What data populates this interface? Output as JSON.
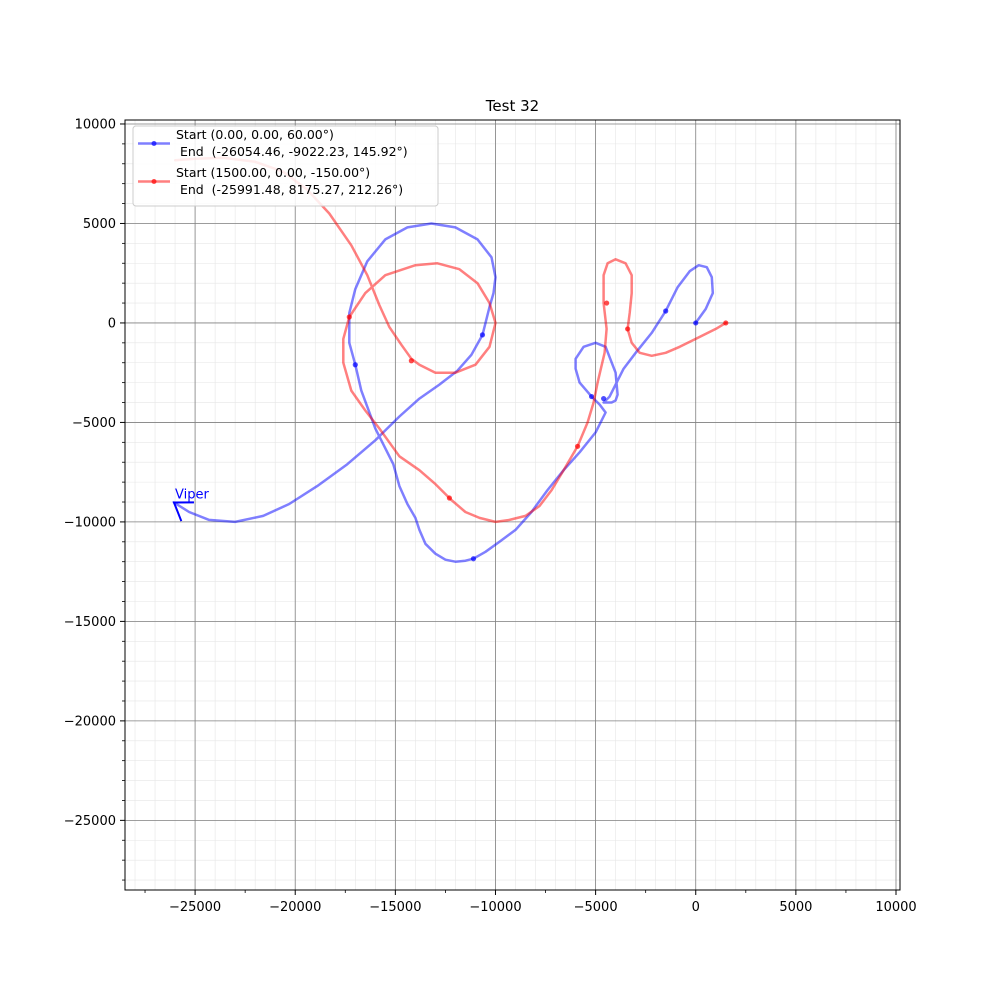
{
  "chart_data": {
    "type": "line",
    "title": "Test 32",
    "xlabel": "",
    "ylabel": "",
    "xlim": [
      -28500,
      10200
    ],
    "ylim": [
      -28500,
      10200
    ],
    "xticks": [
      -25000,
      -20000,
      -15000,
      -10000,
      -5000,
      0,
      5000,
      10000
    ],
    "yticks": [
      10000,
      5000,
      0,
      -5000,
      -10000,
      -15000,
      -20000,
      -25000
    ],
    "xtick_labels": [
      "−25000",
      "−20000",
      "−15000",
      "−10000",
      "−5000",
      "0",
      "5000",
      "10000"
    ],
    "ytick_labels": [
      "10000",
      "5000",
      "0",
      "−5000",
      "−10000",
      "−15000",
      "−20000",
      "−25000"
    ],
    "grid": true,
    "minor_grid": true,
    "minor_step": 1000,
    "legend_position": "top-left",
    "series": [
      {
        "name": "Start (0.00, 0.00, 60.00°)\n End  (-26054.46, -9022.23, 145.92°)",
        "legend_line1": "Start (0.00, 0.00, 60.00°)",
        "legend_line2": " End  (-26054.46, -9022.23, 145.92°)",
        "color": "#0000ff",
        "points": [
          [
            0,
            0
          ],
          [
            500,
            700
          ],
          [
            850,
            1500
          ],
          [
            800,
            2300
          ],
          [
            550,
            2800
          ],
          [
            150,
            2900
          ],
          [
            -300,
            2600
          ],
          [
            -900,
            1800
          ],
          [
            -1500,
            600
          ],
          [
            -2200,
            -500
          ],
          [
            -3000,
            -1500
          ],
          [
            -3600,
            -2300
          ],
          [
            -4000,
            -3100
          ],
          [
            -4300,
            -3700
          ],
          [
            -4600,
            -4000
          ],
          [
            -4200,
            -4000
          ],
          [
            -4000,
            -3900
          ],
          [
            -3900,
            -3600
          ],
          [
            -4000,
            -2500
          ],
          [
            -4500,
            -1200
          ],
          [
            -5000,
            -1000
          ],
          [
            -5600,
            -1200
          ],
          [
            -6000,
            -1800
          ],
          [
            -6000,
            -2300
          ],
          [
            -5800,
            -3000
          ],
          [
            -5200,
            -3700
          ],
          [
            -4800,
            -4100
          ],
          [
            -4500,
            -4500
          ],
          [
            -5000,
            -5500
          ],
          [
            -5800,
            -6500
          ],
          [
            -6600,
            -7400
          ],
          [
            -7400,
            -8400
          ],
          [
            -8200,
            -9500
          ],
          [
            -9000,
            -10400
          ],
          [
            -9800,
            -11000
          ],
          [
            -10500,
            -11500
          ],
          [
            -11100,
            -11850
          ],
          [
            -11500,
            -11950
          ],
          [
            -12000,
            -12000
          ],
          [
            -12500,
            -11900
          ],
          [
            -13000,
            -11600
          ],
          [
            -13500,
            -11100
          ],
          [
            -13800,
            -10400
          ],
          [
            -14000,
            -9800
          ],
          [
            -14400,
            -9100
          ],
          [
            -14800,
            -8200
          ],
          [
            -15100,
            -7100
          ],
          [
            -15500,
            -6300
          ],
          [
            -16000,
            -5300
          ],
          [
            -16700,
            -3400
          ],
          [
            -17000,
            -2100
          ],
          [
            -17300,
            -1000
          ],
          [
            -17300,
            500
          ],
          [
            -17000,
            1700
          ],
          [
            -16400,
            3100
          ],
          [
            -15500,
            4200
          ],
          [
            -14400,
            4800
          ],
          [
            -13200,
            5000
          ],
          [
            -12000,
            4800
          ],
          [
            -10900,
            4200
          ],
          [
            -10200,
            3300
          ],
          [
            -10000,
            2300
          ],
          [
            -10100,
            1500
          ],
          [
            -10300,
            800
          ],
          [
            -10650,
            -600
          ],
          [
            -11200,
            -1600
          ],
          [
            -11900,
            -2400
          ],
          [
            -12800,
            -3100
          ],
          [
            -13800,
            -3800
          ],
          [
            -14800,
            -4700
          ],
          [
            -16000,
            -5900
          ],
          [
            -17400,
            -7100
          ],
          [
            -18900,
            -8200
          ],
          [
            -20300,
            -9100
          ],
          [
            -21600,
            -9700
          ],
          [
            -23000,
            -10000
          ],
          [
            -24300,
            -9900
          ],
          [
            -25300,
            -9500
          ],
          [
            -26054.46,
            -9022.23
          ]
        ],
        "markers": [
          [
            0,
            0
          ],
          [
            -1500,
            600
          ],
          [
            -4600,
            -3800
          ],
          [
            -5200,
            -3700
          ],
          [
            -11100,
            -11850
          ],
          [
            -17000,
            -2100
          ],
          [
            -10650,
            -600
          ]
        ]
      },
      {
        "name": "Start (1500.00, 0.00, -150.00°)\n End  (-25991.48, 8175.27, 212.26°)",
        "legend_line1": "Start (1500.00, 0.00, -150.00°)",
        "legend_line2": " End  (-25991.48, 8175.27, 212.26°)",
        "color": "#ff0000",
        "points": [
          [
            1500,
            0
          ],
          [
            1000,
            -300
          ],
          [
            0,
            -800
          ],
          [
            -800,
            -1200
          ],
          [
            -1500,
            -1500
          ],
          [
            -2200,
            -1650
          ],
          [
            -2800,
            -1500
          ],
          [
            -3200,
            -1000
          ],
          [
            -3400,
            -300
          ],
          [
            -3300,
            500
          ],
          [
            -3200,
            1500
          ],
          [
            -3200,
            2400
          ],
          [
            -3500,
            3000
          ],
          [
            -4000,
            3200
          ],
          [
            -4400,
            3000
          ],
          [
            -4600,
            2400
          ],
          [
            -4600,
            1000
          ],
          [
            -4450,
            -300
          ],
          [
            -4550,
            -1500
          ],
          [
            -4900,
            -3000
          ],
          [
            -5100,
            -4000
          ],
          [
            -5400,
            -5000
          ],
          [
            -5900,
            -6200
          ],
          [
            -6600,
            -7400
          ],
          [
            -7200,
            -8400
          ],
          [
            -7800,
            -9200
          ],
          [
            -8500,
            -9700
          ],
          [
            -9300,
            -9900
          ],
          [
            -10000,
            -10000
          ],
          [
            -10800,
            -9800
          ],
          [
            -11500,
            -9500
          ],
          [
            -12200,
            -8900
          ],
          [
            -13000,
            -8100
          ],
          [
            -13800,
            -7400
          ],
          [
            -14800,
            -6700
          ],
          [
            -15300,
            -6000
          ],
          [
            -15800,
            -5300
          ],
          [
            -16500,
            -4400
          ],
          [
            -17200,
            -3400
          ],
          [
            -17600,
            -2000
          ],
          [
            -17600,
            -800
          ],
          [
            -17300,
            300
          ],
          [
            -16500,
            1500
          ],
          [
            -15500,
            2400
          ],
          [
            -14000,
            2900
          ],
          [
            -12900,
            3000
          ],
          [
            -11800,
            2700
          ],
          [
            -10900,
            2000
          ],
          [
            -10300,
            1000
          ],
          [
            -10000,
            0
          ],
          [
            -10300,
            -1200
          ],
          [
            -11000,
            -2100
          ],
          [
            -12000,
            -2500
          ],
          [
            -13000,
            -2500
          ],
          [
            -13800,
            -2100
          ],
          [
            -14200,
            -1800
          ],
          [
            -14700,
            -1100
          ],
          [
            -15300,
            -200
          ],
          [
            -15800,
            900
          ],
          [
            -16400,
            2400
          ],
          [
            -17200,
            3900
          ],
          [
            -18300,
            5500
          ],
          [
            -19400,
            6700
          ],
          [
            -20600,
            7600
          ],
          [
            -22000,
            8100
          ],
          [
            -23600,
            8300
          ],
          [
            -25000,
            8250
          ],
          [
            -25991.48,
            8175.27
          ]
        ],
        "markers": [
          [
            1500,
            0
          ],
          [
            -3400,
            -300
          ],
          [
            -4450,
            1000
          ],
          [
            -5900,
            -6200
          ],
          [
            -12300,
            -8800
          ],
          [
            -14200,
            -1900
          ],
          [
            -17300,
            300
          ]
        ]
      }
    ],
    "annotations": [
      {
        "text": "Viper",
        "x": -26054.46,
        "y": -9022.23,
        "color": "#0000ff",
        "heading_deg": 145.92
      }
    ]
  }
}
